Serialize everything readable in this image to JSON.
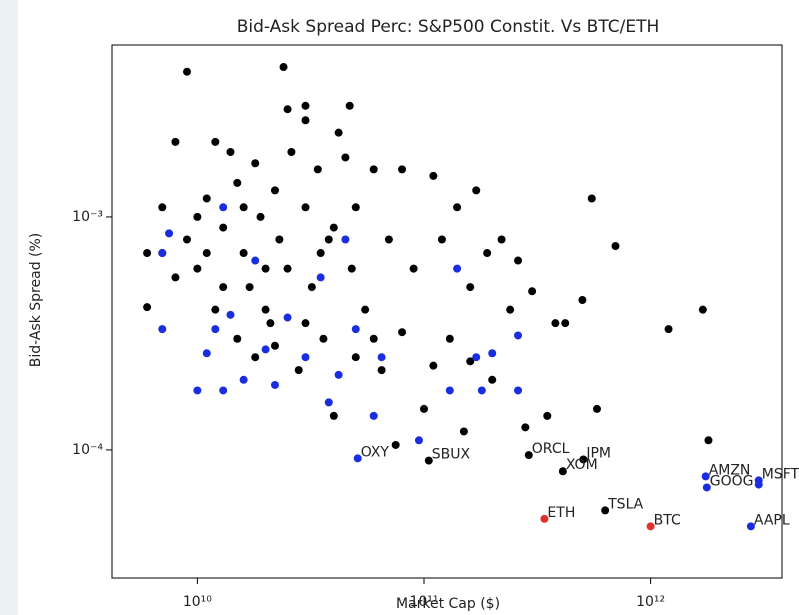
{
  "chart_data": {
    "type": "scatter",
    "title": "Bid-Ask Spread Perc: S&P500 Constit. Vs BTC/ETH",
    "x_label": "Market Cap ($)",
    "y_label": "Bid-Ask Spread (%)",
    "xscale": "log",
    "yscale": "log",
    "xlim": [
      4200000000.0,
      3800000000000.0
    ],
    "ylim": [
      2.82e-05,
      0.00547
    ],
    "xticks": [
      {
        "value": 10000000000.0,
        "label": "10¹⁰"
      },
      {
        "value": 100000000000.0,
        "label": "10¹¹"
      },
      {
        "value": 1000000000000.0,
        "label": "10¹²"
      }
    ],
    "yticks": [
      {
        "value": 0.0001,
        "label": "10⁻⁴"
      },
      {
        "value": 0.001,
        "label": "10⁻³"
      }
    ],
    "series": [
      {
        "color": "#000000",
        "x": [
          8000000000.0,
          12000000000.0,
          9000000000.0,
          24000000000.0,
          25000000000.0,
          30000000000.0,
          47000000000.0,
          30000000000.0,
          6000000000.0,
          6000000000.0,
          7000000000.0,
          7000000000.0,
          8000000000.0,
          9000000000.0,
          10000000000.0,
          10000000000.0,
          11000000000.0,
          12000000000.0,
          13000000000.0,
          14000000000.0,
          15000000000.0,
          16000000000.0,
          17000000000.0,
          18000000000.0,
          19000000000.0,
          20000000000.0,
          21000000000.0,
          22000000000.0,
          23000000000.0,
          25000000000.0,
          26000000000.0,
          28000000000.0,
          30000000000.0,
          32000000000.0,
          34000000000.0,
          36000000000.0,
          38000000000.0,
          40000000000.0,
          42000000000.0,
          45000000000.0,
          48000000000.0,
          50000000000.0,
          55000000000.0,
          60000000000.0,
          65000000000.0,
          70000000000.0,
          75000000000.0,
          80000000000.0,
          90000000000.0,
          100000000000.0,
          110000000000.0,
          120000000000.0,
          130000000000.0,
          140000000000.0,
          150000000000.0,
          160000000000.0,
          170000000000.0,
          190000000000.0,
          200000000000.0,
          220000000000.0,
          240000000000.0,
          260000000000.0,
          280000000000.0,
          300000000000.0,
          350000000000.0,
          380000000000.0,
          420000000000.0,
          500000000000.0,
          550000000000.0,
          580000000000.0,
          700000000000.0,
          1200000000000.0,
          1700000000000.0,
          1800000000000.0,
          15000000000.0,
          18000000000.0,
          22000000000.0,
          30000000000.0,
          13000000000.0,
          11000000000.0,
          20000000000.0,
          16000000000.0,
          35000000000.0,
          40000000000.0,
          50000000000.0,
          60000000000.0,
          80000000000.0,
          110000000000.0,
          160000000000.0
        ],
        "values": [
          0.0021,
          0.0021,
          0.0042,
          0.0044,
          0.0029,
          0.003,
          0.003,
          0.0026,
          0.00041,
          0.0007,
          0.0011,
          0.0007,
          0.00055,
          0.0008,
          0.001,
          0.0006,
          0.0012,
          0.0004,
          0.0009,
          0.0019,
          0.0014,
          0.0007,
          0.0005,
          0.0017,
          0.001,
          0.0004,
          0.00035,
          0.0013,
          0.0008,
          0.0006,
          0.0019,
          0.00022,
          0.0011,
          0.0005,
          0.0016,
          0.0003,
          0.0008,
          0.00014,
          0.0023,
          0.0018,
          0.0006,
          0.0011,
          0.0004,
          0.0016,
          0.00022,
          0.0008,
          0.000105,
          0.0016,
          0.0006,
          0.00015,
          0.0015,
          0.0008,
          0.0003,
          0.0011,
          0.00012,
          0.0005,
          0.0013,
          0.0007,
          0.0002,
          0.0008,
          0.0004,
          0.00065,
          0.000125,
          0.00048,
          0.00014,
          0.00035,
          0.00035,
          0.00044,
          0.0012,
          0.00015,
          0.00075,
          0.00033,
          0.0004,
          0.00011,
          0.0003,
          0.00025,
          0.00028,
          0.00035,
          0.0005,
          0.0007,
          0.0006,
          0.0011,
          0.0007,
          0.0009,
          0.00025,
          0.0003,
          0.00032,
          0.00023,
          0.00024
        ]
      },
      {
        "color": "#1a2ee0",
        "x": [
          7000000000.0,
          7000000000.0,
          7500000000.0,
          10000000000.0,
          11000000000.0,
          12000000000.0,
          13000000000.0,
          13000000000.0,
          14000000000.0,
          16000000000.0,
          18000000000.0,
          20000000000.0,
          22000000000.0,
          25000000000.0,
          30000000000.0,
          35000000000.0,
          38000000000.0,
          42000000000.0,
          45000000000.0,
          50000000000.0,
          60000000000.0,
          65000000000.0,
          95000000000.0,
          130000000000.0,
          140000000000.0,
          170000000000.0,
          180000000000.0,
          200000000000.0,
          260000000000.0,
          260000000000.0,
          3000000000000.0
        ],
        "values": [
          0.0007,
          0.00033,
          0.00085,
          0.00018,
          0.00026,
          0.00033,
          0.0011,
          0.00018,
          0.00038,
          0.0002,
          0.00065,
          0.00027,
          0.00019,
          0.00037,
          0.00025,
          0.00055,
          0.00016,
          0.00021,
          0.0008,
          0.00033,
          0.00014,
          0.00025,
          0.00011,
          0.00018,
          0.0006,
          0.00025,
          0.00018,
          0.00026,
          0.00031,
          0.00018,
          7.1e-05
        ]
      },
      {
        "color": "#000000",
        "x": [
          105000000000.0,
          290000000000.0,
          505000000000.0,
          410000000000.0,
          630000000000.0
        ],
        "values": [
          9e-05,
          9.5e-05,
          9.1e-05,
          8.1e-05,
          5.5e-05
        ],
        "labels": [
          "SBUX",
          "ORCL",
          "JPM",
          "XOM",
          "TSLA"
        ]
      },
      {
        "color": "#1a2ee0",
        "x": [
          51000000000.0,
          1750000000000.0,
          1770000000000.0,
          3000000000000.0,
          2770000000000.0
        ],
        "values": [
          9.2e-05,
          7.7e-05,
          6.9e-05,
          7.4e-05,
          4.7e-05
        ],
        "labels": [
          "OXY",
          "AMZN",
          "GOOG",
          "MSFT",
          "AAPL"
        ]
      },
      {
        "color": "#e0312b",
        "x": [
          340000000000.0,
          1000000000000.0
        ],
        "values": [
          5.06e-05,
          4.7e-05
        ],
        "labels": [
          "ETH",
          "BTC"
        ]
      }
    ]
  }
}
